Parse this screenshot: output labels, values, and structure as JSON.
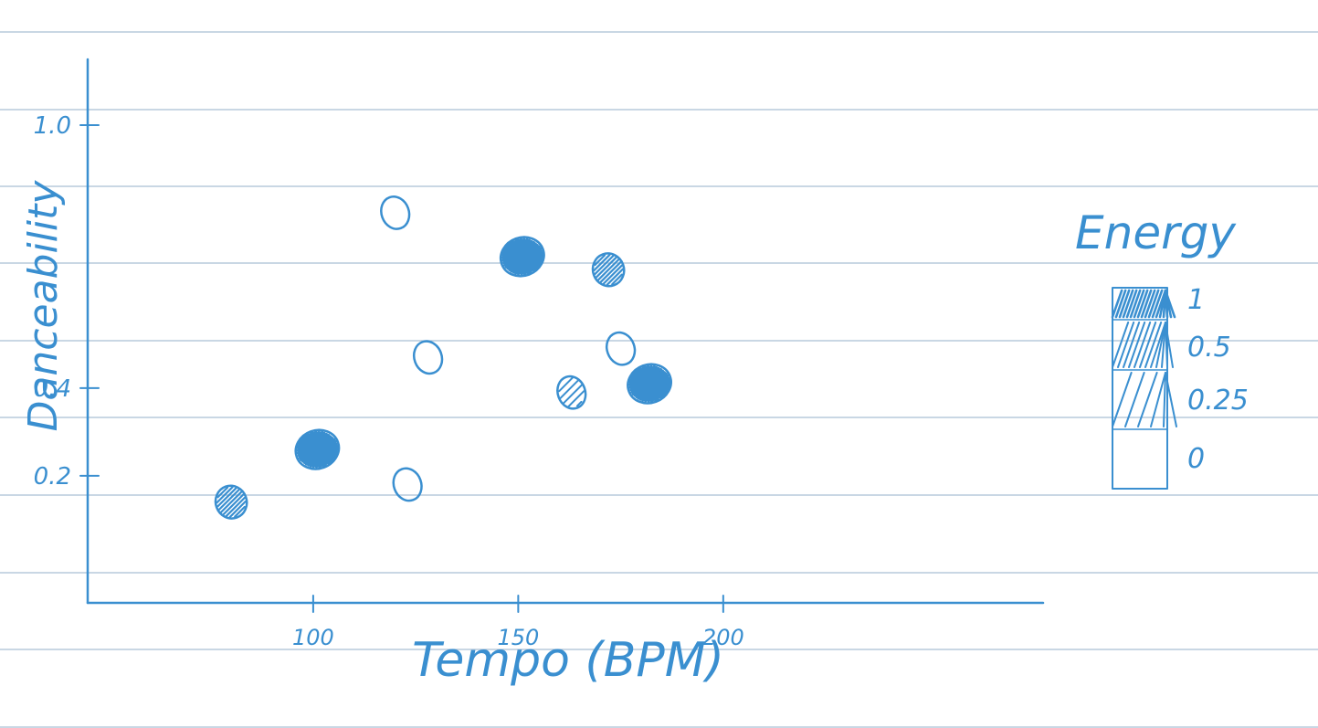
{
  "chart_data": {
    "type": "scatter",
    "title": "",
    "xlabel": "Tempo (BPM)",
    "ylabel": "Danceability",
    "x_ticks": [
      100,
      150,
      200
    ],
    "y_ticks": [
      0.2,
      0.4,
      1.0
    ],
    "x_range": [
      45,
      278
    ],
    "y_range": [
      -0.09,
      1.15
    ],
    "points": [
      {
        "x": 80,
        "y": 0.14,
        "energy": 0.6
      },
      {
        "x": 101,
        "y": 0.26,
        "energy": 0.9
      },
      {
        "x": 120,
        "y": 0.8,
        "energy": 0.0
      },
      {
        "x": 128,
        "y": 0.47,
        "energy": 0.0
      },
      {
        "x": 123,
        "y": 0.18,
        "energy": 0.0
      },
      {
        "x": 151,
        "y": 0.7,
        "energy": 1.0
      },
      {
        "x": 172,
        "y": 0.67,
        "energy": 0.5
      },
      {
        "x": 175,
        "y": 0.49,
        "energy": 0.0
      },
      {
        "x": 163,
        "y": 0.39,
        "energy": 0.25
      },
      {
        "x": 182,
        "y": 0.41,
        "energy": 0.9
      }
    ],
    "legend": {
      "title": "Energy",
      "placement": "right",
      "levels": [
        {
          "label": "1",
          "value": 1.0
        },
        {
          "label": "0.5",
          "value": 0.5
        },
        {
          "label": "0.25",
          "value": 0.25
        },
        {
          "label": "0",
          "value": 0.0
        }
      ]
    },
    "colors": {
      "ink": "#3a8fd0",
      "ruling": "#a9bfd4"
    }
  }
}
